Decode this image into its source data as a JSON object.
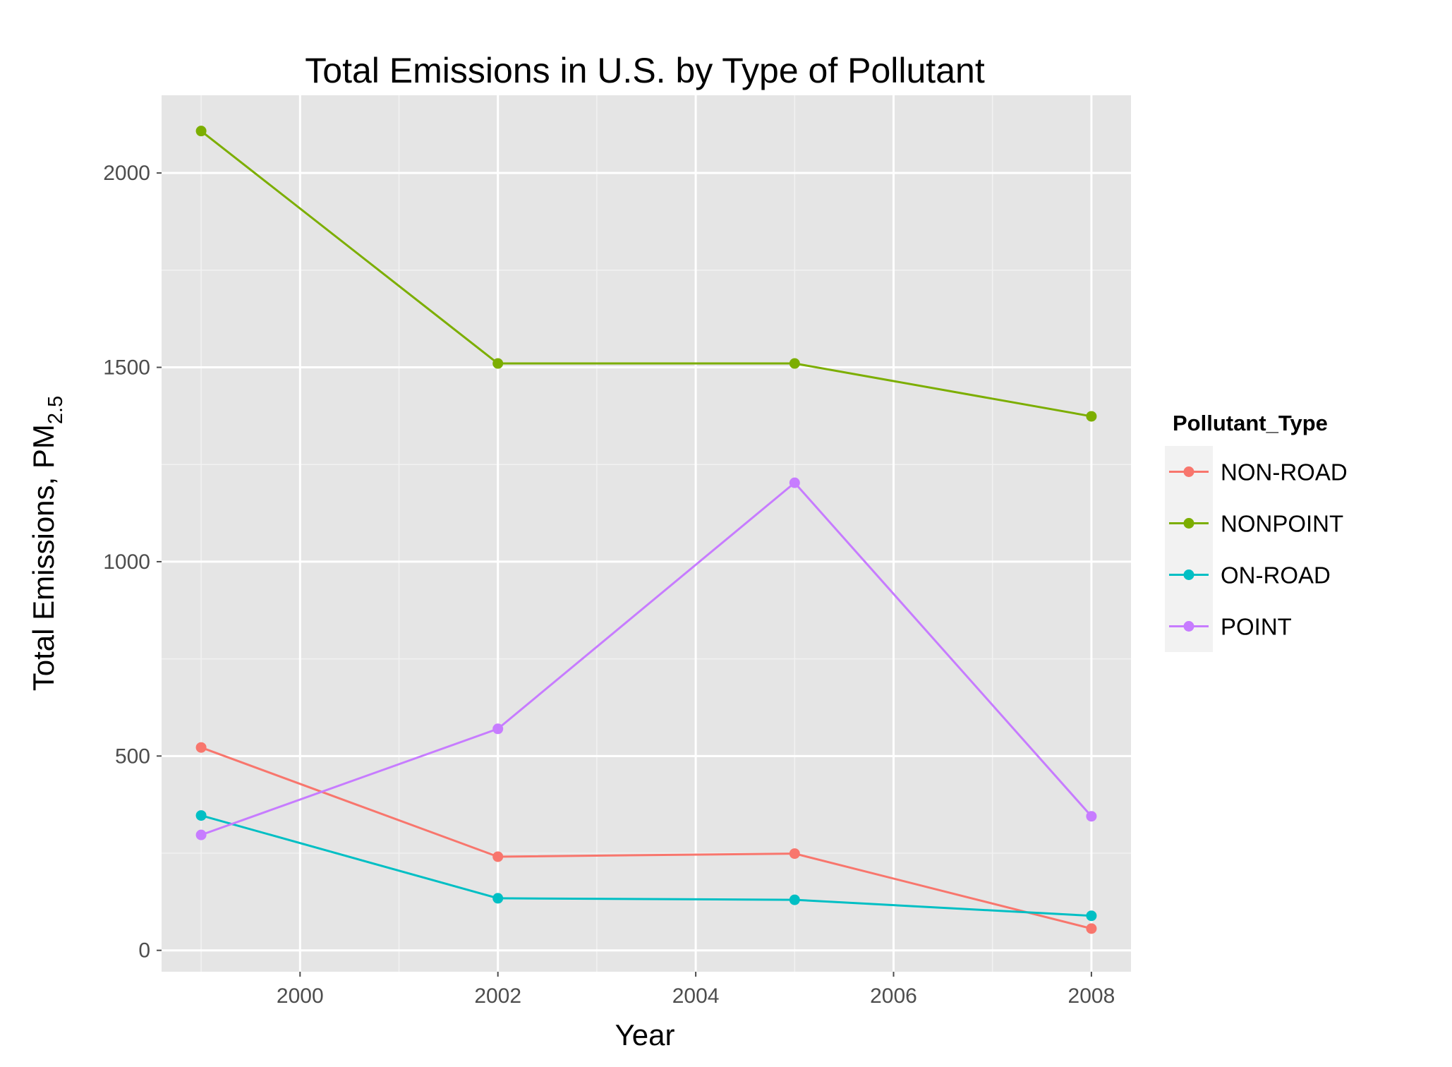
{
  "chart_data": {
    "type": "line",
    "title": "Total Emissions in U.S. by Type of Pollutant",
    "xlabel": "Year",
    "ylabel": "Total Emissions, PM",
    "ylabel_subscript": "2.5",
    "x": [
      1999,
      2002,
      2005,
      2008
    ],
    "xlim": [
      1998.6,
      2008.4
    ],
    "ylim": [
      -55,
      2200
    ],
    "x_ticks": [
      2000,
      2002,
      2004,
      2006,
      2008
    ],
    "y_ticks": [
      0,
      500,
      1000,
      1500,
      2000
    ],
    "grid": true,
    "legend": {
      "title": "Pollutant_Type",
      "position": "right"
    },
    "series": [
      {
        "name": "NON-ROAD",
        "color": "#F8766D",
        "values": [
          522,
          241,
          249,
          56
        ]
      },
      {
        "name": "NONPOINT",
        "color": "#7CAE00",
        "values": [
          2108,
          1510,
          1510,
          1374
        ]
      },
      {
        "name": "ON-ROAD",
        "color": "#00BFC4",
        "values": [
          347,
          134,
          130,
          89
        ]
      },
      {
        "name": "POINT",
        "color": "#C77CFF",
        "values": [
          297,
          570,
          1203,
          345
        ]
      }
    ]
  }
}
